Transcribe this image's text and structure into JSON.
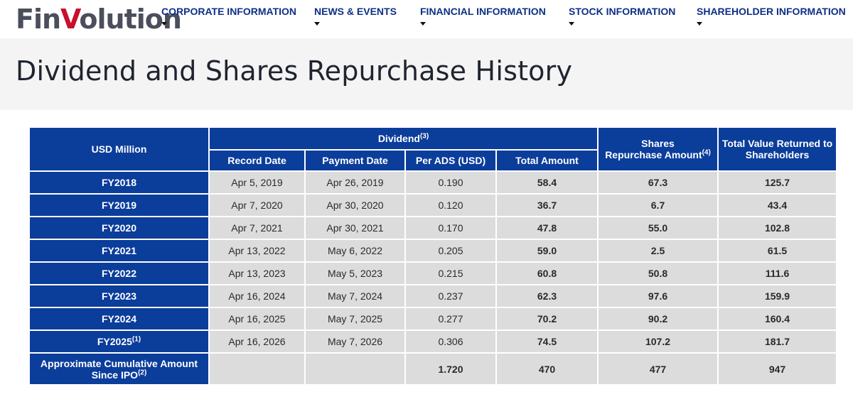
{
  "logo": {
    "prefix": "Fin",
    "v": "V",
    "suffix": "olution"
  },
  "nav": [
    {
      "label": "CORPORATE INFORMATION"
    },
    {
      "label": "NEWS & EVENTS"
    },
    {
      "label": "FINANCIAL INFORMATION"
    },
    {
      "label": "STOCK INFORMATION"
    },
    {
      "label": "SHAREHOLDER INFORMATION"
    }
  ],
  "page": {
    "title": "Dividend and Shares Repurchase History"
  },
  "table": {
    "corner": "USD  Million",
    "dividend_group": "Dividend",
    "dividend_group_note": "(3)",
    "columns": {
      "record_date": "Record Date",
      "payment_date": "Payment Date",
      "per_ads": "Per ADS (USD)",
      "total_amount": "Total Amount",
      "repurchase_line1": "Shares",
      "repurchase_line2": "Repurchase Amount",
      "repurchase_note": "(4)",
      "total_value_line1": "Total Value Returned to",
      "total_value_line2": "Shareholders"
    },
    "rows": [
      {
        "fy": "FY2018",
        "note": "",
        "record": "Apr 5, 2019",
        "payment": "Apr 26, 2019",
        "per_ads": "0.190",
        "total": "58.4",
        "repurchase": "67.3",
        "returned": "125.7"
      },
      {
        "fy": "FY2019",
        "note": "",
        "record": "Apr 7, 2020",
        "payment": "Apr 30, 2020",
        "per_ads": "0.120",
        "total": "36.7",
        "repurchase": "6.7",
        "returned": "43.4"
      },
      {
        "fy": "FY2020",
        "note": "",
        "record": "Apr 7, 2021",
        "payment": "Apr 30, 2021",
        "per_ads": "0.170",
        "total": "47.8",
        "repurchase": "55.0",
        "returned": "102.8"
      },
      {
        "fy": "FY2021",
        "note": "",
        "record": "Apr 13, 2022",
        "payment": "May 6, 2022",
        "per_ads": "0.205",
        "total": "59.0",
        "repurchase": "2.5",
        "returned": "61.5"
      },
      {
        "fy": "FY2022",
        "note": "",
        "record": "Apr 13, 2023",
        "payment": "May 5, 2023",
        "per_ads": "0.215",
        "total": "60.8",
        "repurchase": "50.8",
        "returned": "111.6"
      },
      {
        "fy": "FY2023",
        "note": "",
        "record": "Apr 16, 2024",
        "payment": "May 7, 2024",
        "per_ads": "0.237",
        "total": "62.3",
        "repurchase": "97.6",
        "returned": "159.9"
      },
      {
        "fy": "FY2024",
        "note": "",
        "record": "Apr 16, 2025",
        "payment": "May 7, 2025",
        "per_ads": "0.277",
        "total": "70.2",
        "repurchase": "90.2",
        "returned": "160.4"
      },
      {
        "fy": "FY2025",
        "note": "(1)",
        "record": "Apr 16, 2026",
        "payment": "May 7, 2026",
        "per_ads": "0.306",
        "total": "74.5",
        "repurchase": "107.2",
        "returned": "181.7"
      }
    ],
    "cumulative": {
      "label_line1": "Approximate Cumulative Amount",
      "label_line2": "Since IPO",
      "note": "(2)",
      "per_ads": "1.720",
      "total": "470",
      "repurchase": "477",
      "returned": "947"
    }
  }
}
